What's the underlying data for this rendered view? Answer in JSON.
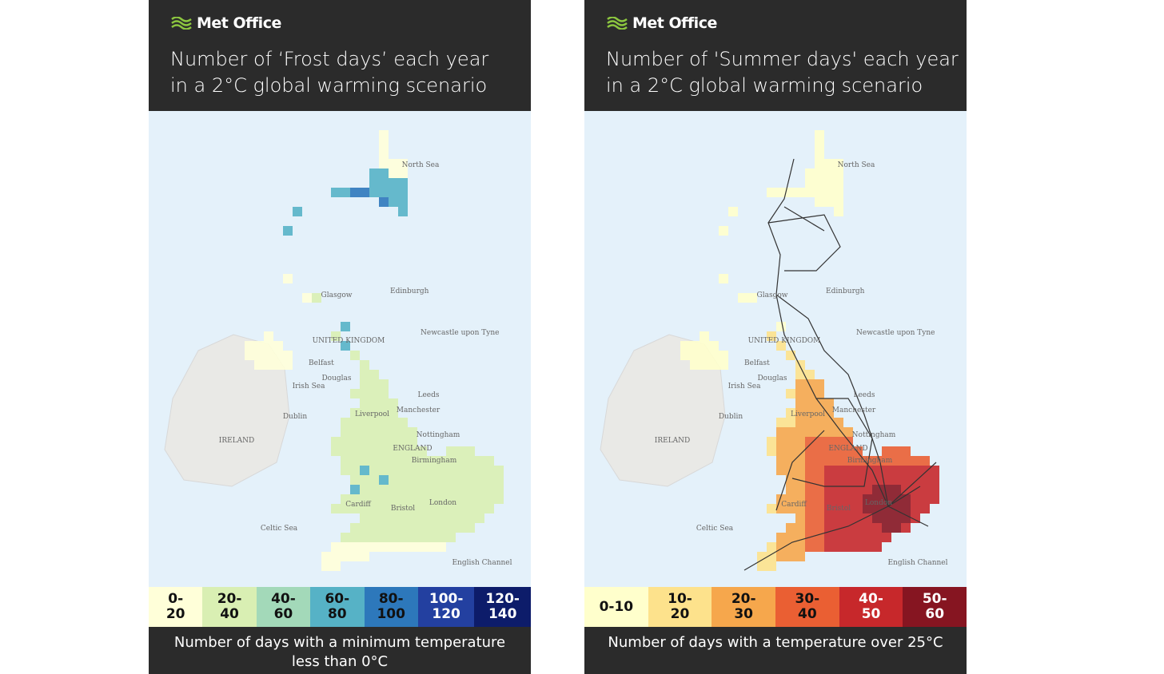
{
  "panels": [
    {
      "logo": "Met Office",
      "title": [
        "Number of ‘Frost days’ each year",
        "in a 2°C global warming scenario"
      ],
      "map_labels": [
        "North Sea",
        "Edinburgh",
        "Glasgow",
        "Newcastle upon Tyne",
        "UNITED KINGDOM",
        "Belfast",
        "Douglas",
        "Irish Sea",
        "Dublin",
        "IRELAND",
        "Liverpool",
        "Manchester",
        "Leeds",
        "Nottingham",
        "Birmingham",
        "ENGLAND",
        "Cardiff",
        "Bristol",
        "London",
        "Celtic Sea",
        "English Channel"
      ],
      "legend": [
        {
          "label": "0-20",
          "color": "#ffffd9"
        },
        {
          "label": "20-40",
          "color": "#d9efb3"
        },
        {
          "label": "40-60",
          "color": "#a3d9b9"
        },
        {
          "label": "60-80",
          "color": "#56b2c6"
        },
        {
          "label": "80-100",
          "color": "#2d78bb"
        },
        {
          "label": "100-120",
          "color": "#2340a0"
        },
        {
          "label": "120-140",
          "color": "#0d1c6a"
        }
      ],
      "footer": "Number of days with a minimum temperature less than 0°C"
    },
    {
      "logo": "Met Office",
      "title": [
        "Number of 'Summer days' each year",
        "in a 2°C global warming scenario"
      ],
      "map_labels": [
        "North Sea",
        "Edinburgh",
        "Glasgow",
        "Newcastle upon Tyne",
        "UNITED KINGDOM",
        "Belfast",
        "Douglas",
        "Irish Sea",
        "Dublin",
        "IRELAND",
        "Liverpool",
        "Manchester",
        "Leeds",
        "Nottingham",
        "Birmingham",
        "ENGLAND",
        "Cardiff",
        "Bristol",
        "London",
        "Celtic Sea",
        "English Channel"
      ],
      "legend": [
        {
          "label": "0-10",
          "color": "#ffffcc"
        },
        {
          "label": "10-20",
          "color": "#fde28c"
        },
        {
          "label": "20-30",
          "color": "#f6a74c"
        },
        {
          "label": "30-40",
          "color": "#ea5f33"
        },
        {
          "label": "40-50",
          "color": "#c7282b"
        },
        {
          "label": "50-60",
          "color": "#861521"
        }
      ],
      "footer": "Number of days with a temperature over 25°C"
    }
  ]
}
